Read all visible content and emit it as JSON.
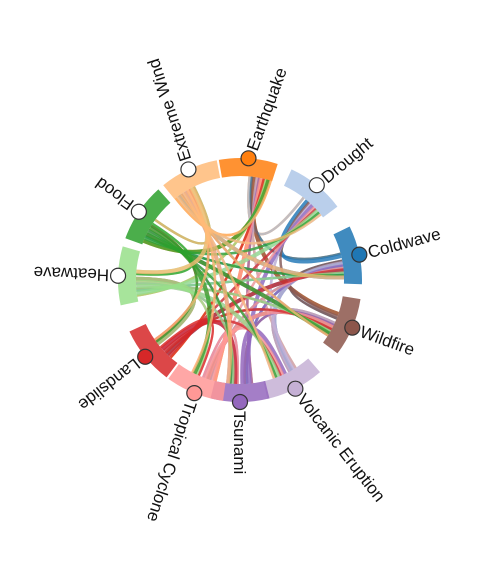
{
  "diagram": {
    "type": "chord",
    "nodes": [
      {
        "name": "Earthquake",
        "color": "#ff7f0e",
        "dot": "#ff7f0e",
        "angle": -86,
        "rotate": -70,
        "fill": true
      },
      {
        "name": "Drought",
        "color": "#aec7e8",
        "dot": "#ffffff",
        "angle": -51,
        "rotate": -40,
        "fill": false
      },
      {
        "name": "Coldwave",
        "color": "#1f77b4",
        "dot": "#1f77b4",
        "angle": -12,
        "rotate": -15,
        "fill": true
      },
      {
        "name": "Wildfire",
        "color": "#8c564b",
        "dot": "#8c564b",
        "angle": 23,
        "rotate": 20,
        "fill": true
      },
      {
        "name": "Volcanic Eruption",
        "color": "#c5b0d5",
        "dot": "#c5b0d5",
        "angle": 63,
        "rotate": 52,
        "fill": true
      },
      {
        "name": "Tsunami",
        "color": "#9467bd",
        "dot": "#9467bd",
        "angle": 90,
        "rotate": 90,
        "fill": true
      },
      {
        "name": "Tropical Cyclone",
        "color": "#ff9896",
        "dot": "#ff9896",
        "angle": 112,
        "rotate": 108,
        "fill": true
      },
      {
        "name": "Landslide",
        "color": "#d62728",
        "dot": "#d62728",
        "angle": 141,
        "rotate": 142,
        "fill": true
      },
      {
        "name": "Heatwave",
        "color": "#98df8a",
        "dot": "#ffffff",
        "angle": 182,
        "rotate": 182,
        "fill": false
      },
      {
        "name": "Flood",
        "color": "#2ca02c",
        "dot": "#ffffff",
        "angle": 214,
        "rotate": 216,
        "fill": false
      },
      {
        "name": "Extreme Wind",
        "color": "#ffbb78",
        "dot": "#ffffff",
        "angle": 245,
        "rotate": 252,
        "fill": false
      }
    ]
  }
}
